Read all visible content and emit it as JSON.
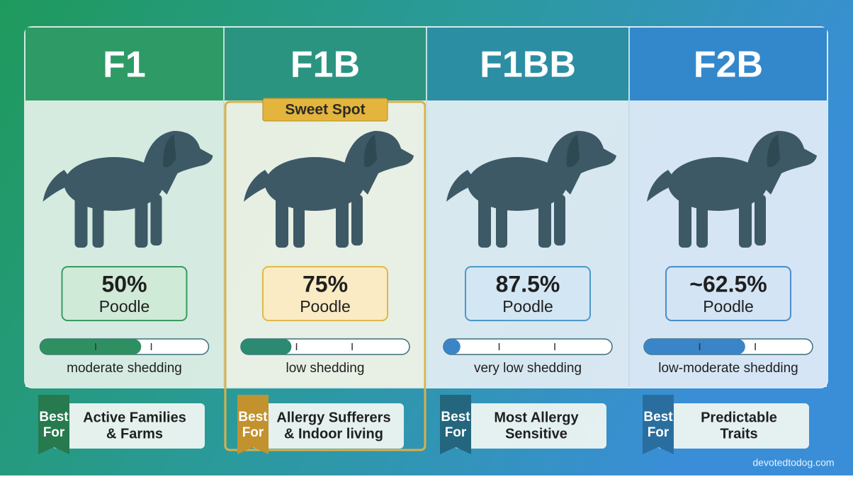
{
  "columns": [
    {
      "title": "F1",
      "percent": "50%",
      "breed": "Poodle",
      "shedding_fill": 0.6,
      "shedding": "moderate shedding",
      "tag": [
        "Best",
        "For"
      ],
      "best_for": [
        "Active Families",
        "& Farms"
      ]
    },
    {
      "title": "F1B",
      "badge": "Sweet Spot",
      "percent": "75%",
      "breed": "Poodle",
      "shedding_fill": 0.3,
      "shedding": "low shedding",
      "tag": [
        "Best",
        "For"
      ],
      "best_for": [
        "Allergy Sufferers",
        "& Indoor living"
      ]
    },
    {
      "title": "F1BB",
      "percent": "87.5%",
      "breed": "Poodle",
      "shedding_fill": 0.1,
      "shedding": "very low shedding",
      "tag": [
        "Best",
        "For"
      ],
      "best_for": [
        "Most Allergy",
        "Sensitive"
      ]
    },
    {
      "title": "F2B",
      "percent": "~62.5%",
      "breed": "Poodle",
      "shedding_fill": 0.6,
      "shedding": "low-moderate shedding",
      "tag": [
        "Best",
        "For"
      ],
      "best_for": [
        "Predictable",
        "Traits"
      ]
    }
  ],
  "footer": "devotedtodog.com"
}
